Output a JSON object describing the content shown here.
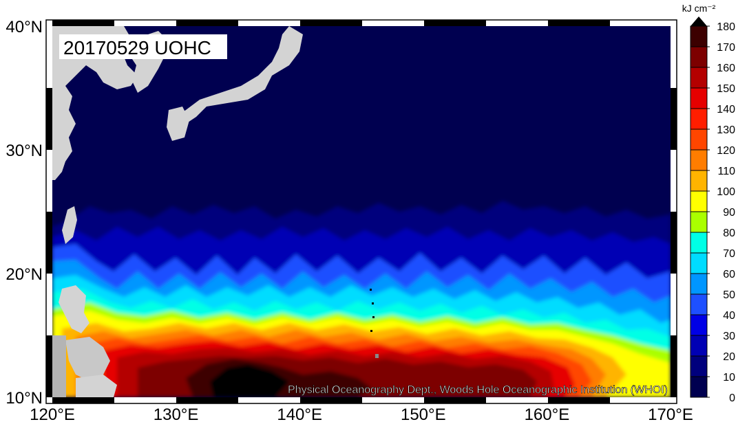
{
  "map": {
    "title": "20170529 UOHC",
    "credit": "Physical Oceanography Dept., Woods Hole Oceanographic Institution (WHOI)",
    "lon_range": [
      120,
      170
    ],
    "lat_range": [
      10,
      40
    ],
    "lon_ticks": [
      {
        "value": 120,
        "label": "120°E"
      },
      {
        "value": 130,
        "label": "130°E"
      },
      {
        "value": 140,
        "label": "140°E"
      },
      {
        "value": 150,
        "label": "150°E"
      },
      {
        "value": 160,
        "label": "160°E"
      },
      {
        "value": 170,
        "label": "170°E"
      }
    ],
    "lat_ticks": [
      {
        "value": 10,
        "label": "10°N"
      },
      {
        "value": 20,
        "label": "20°N"
      },
      {
        "value": 30,
        "label": "30°N"
      },
      {
        "value": 40,
        "label": "40°N"
      }
    ],
    "land_color": "#d3d3d3",
    "ocean_low_color": "#000050"
  },
  "colorbar": {
    "unit": "kJ cm⁻²",
    "range": [
      0,
      180
    ],
    "levels": [
      0,
      10,
      20,
      30,
      40,
      50,
      60,
      70,
      80,
      90,
      100,
      110,
      120,
      130,
      140,
      150,
      160,
      170,
      180
    ],
    "colors": [
      "#000050",
      "#00007d",
      "#0000b4",
      "#0000e6",
      "#1e50ff",
      "#0096ff",
      "#00dcff",
      "#00ffe6",
      "#aaff00",
      "#ffff00",
      "#ffb400",
      "#ff7d00",
      "#ff4600",
      "#ff1e00",
      "#e60000",
      "#b40000",
      "#7d0000",
      "#3c0000"
    ],
    "top_color": "#000000"
  }
}
